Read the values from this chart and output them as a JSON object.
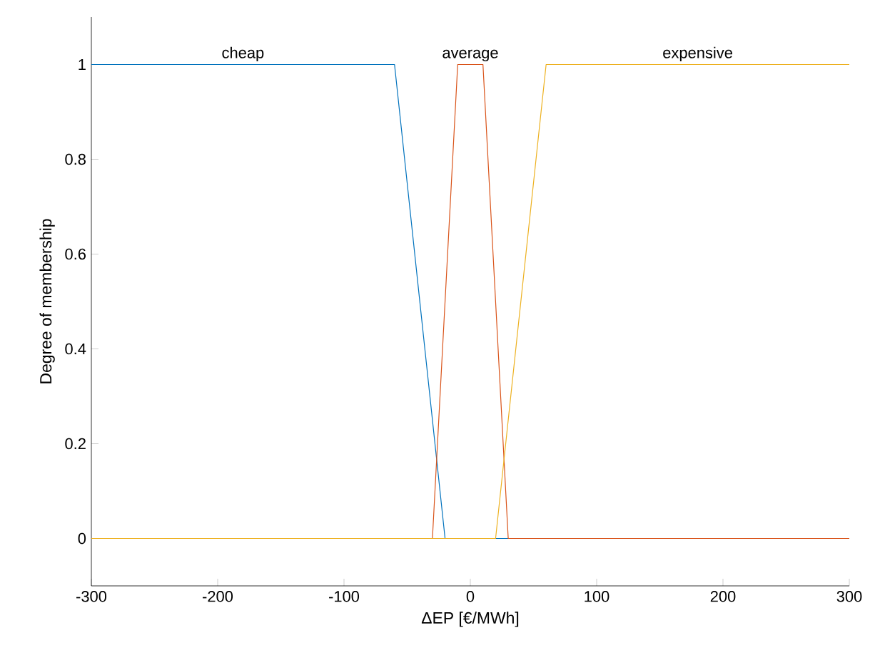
{
  "chart_data": {
    "type": "line",
    "xlabel": "ΔEP [€/MWh]",
    "ylabel": "Degree of membership",
    "xlim": [
      -300,
      300
    ],
    "ylim": [
      -0.1,
      1.1
    ],
    "xticks": [
      -300,
      -200,
      -100,
      0,
      100,
      200,
      300
    ],
    "yticks": [
      0,
      {
        "value": 0.2,
        "label": "0.2"
      },
      {
        "value": 0.4,
        "label": "0.4"
      },
      {
        "value": 0.6,
        "label": "0.6"
      },
      {
        "value": 0.8,
        "label": "0.8"
      },
      1
    ],
    "series": [
      {
        "name": "cheap",
        "color": "#0072bd",
        "x": [
          -300,
          -60,
          -20,
          300
        ],
        "values": [
          1,
          1,
          0,
          0
        ]
      },
      {
        "name": "average",
        "color": "#d95319",
        "x": [
          -300,
          -30,
          -10,
          10,
          30,
          300
        ],
        "values": [
          0,
          0,
          1,
          1,
          0,
          0
        ]
      },
      {
        "name": "expensive",
        "color": "#edb120",
        "x": [
          -300,
          20,
          60,
          300
        ],
        "values": [
          0,
          0,
          1,
          1
        ]
      }
    ],
    "grid": false,
    "legend": false,
    "marker": "none",
    "line_style": "solid"
  }
}
